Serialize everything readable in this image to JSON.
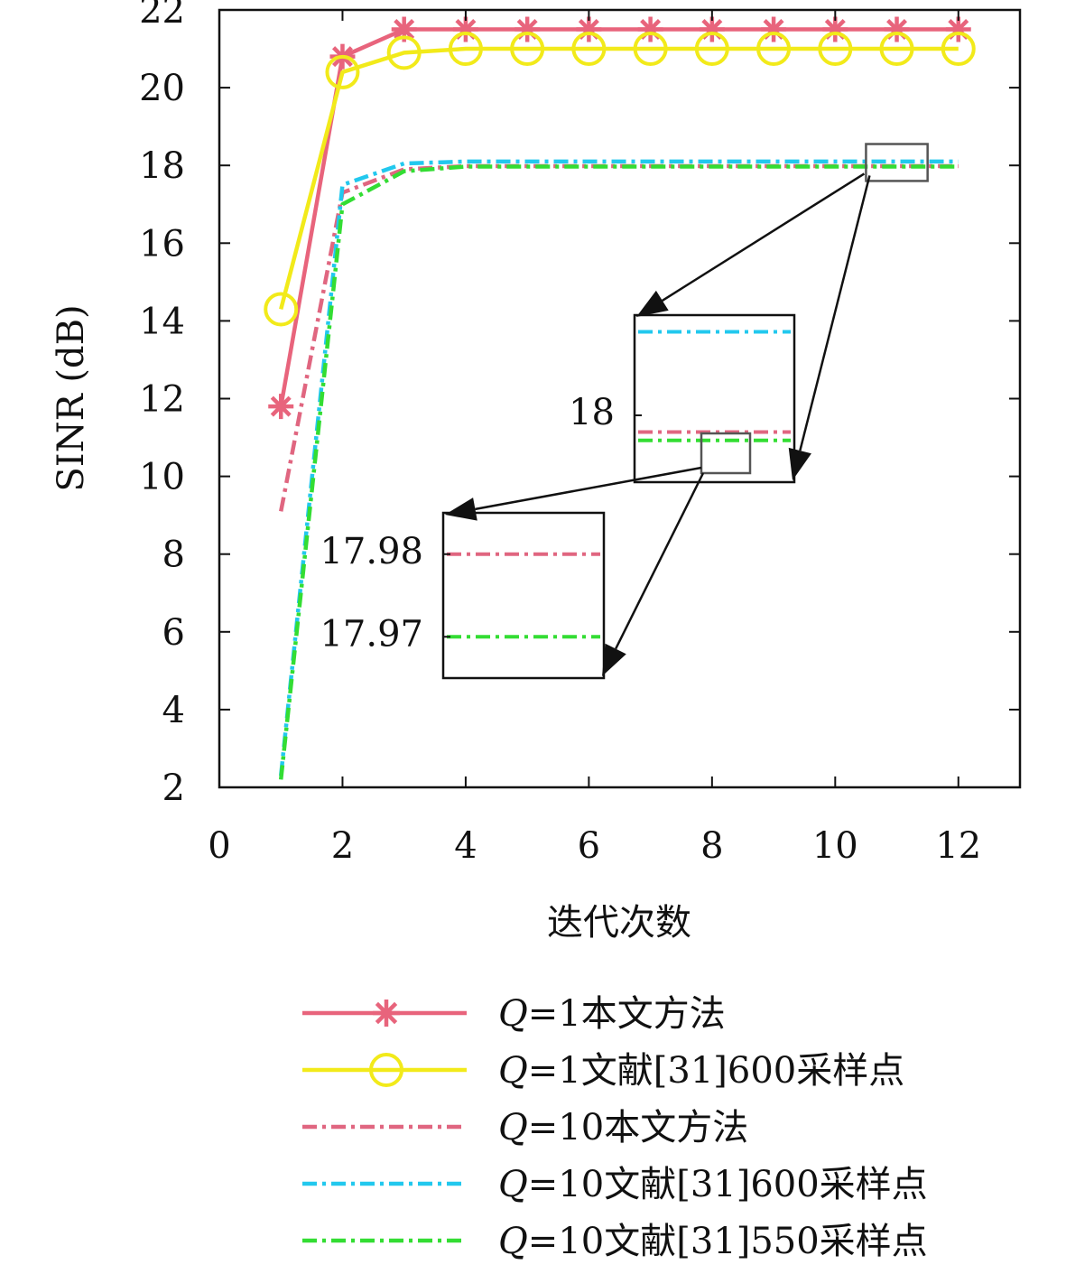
{
  "chart_data": {
    "type": "line",
    "xlabel": "迭代次数",
    "ylabel": "SINR (dB)",
    "xlim": [
      0,
      13
    ],
    "ylim": [
      2,
      22
    ],
    "xticks": [
      "0",
      "2",
      "4",
      "6",
      "8",
      "10",
      "12"
    ],
    "yticks": [
      "2",
      "4",
      "6",
      "8",
      "10",
      "12",
      "14",
      "16",
      "18",
      "20",
      "22"
    ],
    "x": [
      1,
      2,
      3,
      4,
      5,
      6,
      7,
      8,
      9,
      10,
      11,
      12
    ],
    "grid": false,
    "legend_position": "bottom",
    "series": [
      {
        "name_prefix": "Q",
        "name": "=1本文方法",
        "color": "#e8647c",
        "line": "solid",
        "marker": "asterisk",
        "values": [
          11.8,
          20.8,
          21.5,
          21.5,
          21.5,
          21.5,
          21.5,
          21.5,
          21.5,
          21.5,
          21.5,
          21.5
        ]
      },
      {
        "name_prefix": "Q",
        "name": "=1文献[31]600采样点",
        "color": "#f2ea1a",
        "line": "solid",
        "marker": "circle",
        "values": [
          14.3,
          20.4,
          20.9,
          21.0,
          21.0,
          21.0,
          21.0,
          21.0,
          21.0,
          21.0,
          21.0,
          21.0
        ]
      },
      {
        "name_prefix": "Q",
        "name": "=10本文方法",
        "color": "#e06680",
        "line": "dashdot",
        "marker": "none",
        "values": [
          9.1,
          17.3,
          17.9,
          17.98,
          17.98,
          17.98,
          17.98,
          17.98,
          17.98,
          17.98,
          17.98,
          17.98
        ]
      },
      {
        "name_prefix": "Q",
        "name": "=10文献[31]600采样点",
        "color": "#22c8ee",
        "line": "dashdot",
        "marker": "none",
        "values": [
          2.3,
          17.5,
          18.05,
          18.1,
          18.1,
          18.1,
          18.1,
          18.1,
          18.1,
          18.1,
          18.1,
          18.1
        ]
      },
      {
        "name_prefix": "Q",
        "name": "=10文献[31]550采样点",
        "color": "#33dd33",
        "line": "dashdot",
        "marker": "none",
        "values": [
          2.2,
          17.0,
          17.85,
          17.97,
          17.97,
          17.97,
          17.97,
          17.97,
          17.97,
          17.97,
          17.97,
          17.97
        ]
      }
    ],
    "zoom_insets": [
      {
        "tick_labels": [
          "18"
        ],
        "tick_values": [
          18
        ],
        "y_range": [
          17.92,
          18.12
        ]
      },
      {
        "tick_labels": [
          "17.98",
          "17.97"
        ],
        "tick_values": [
          17.98,
          17.97
        ],
        "y_range": [
          17.965,
          17.985
        ]
      }
    ]
  }
}
